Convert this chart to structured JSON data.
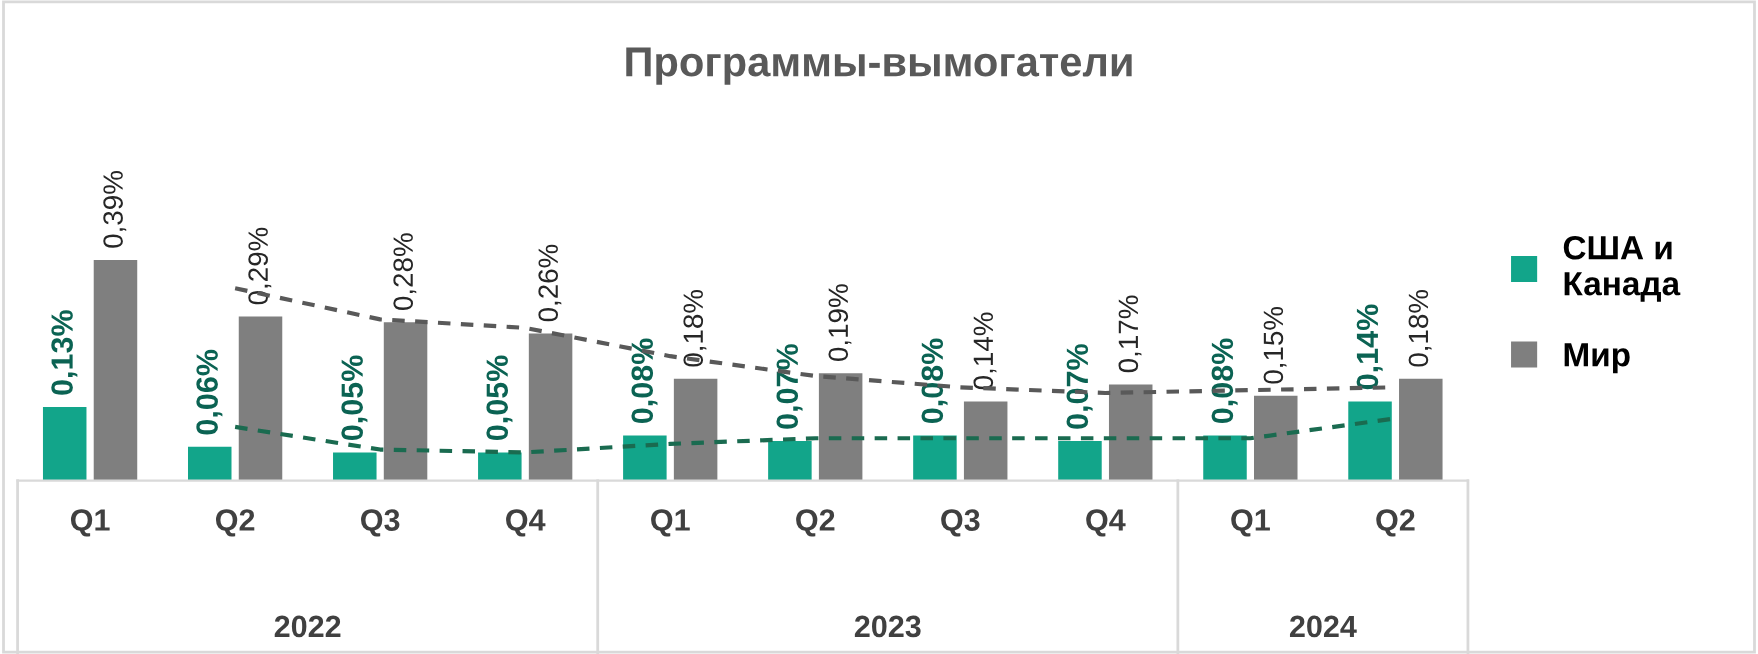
{
  "chart_data": {
    "type": "bar",
    "title": "Программы-вымогатели",
    "categories": [
      "Q1",
      "Q2",
      "Q3",
      "Q4",
      "Q1",
      "Q2",
      "Q3",
      "Q4",
      "Q1",
      "Q2"
    ],
    "series": [
      {
        "name": "США и\nКанада",
        "color": "#12a58a",
        "values": [
          0.13,
          0.06,
          0.05,
          0.05,
          0.08,
          0.07,
          0.08,
          0.07,
          0.08,
          0.14
        ],
        "value_labels": [
          "0,13%",
          "0,06%",
          "0,05%",
          "0,05%",
          "0,08%",
          "0,07%",
          "0,08%",
          "0,07%",
          "0,08%",
          "0,14%"
        ]
      },
      {
        "name": "Мир",
        "color": "#7f7f7f",
        "values": [
          0.39,
          0.29,
          0.28,
          0.26,
          0.18,
          0.19,
          0.14,
          0.17,
          0.15,
          0.18
        ],
        "value_labels": [
          "0,39%",
          "0,29%",
          "0,28%",
          "0,26%",
          "0,18%",
          "0,19%",
          "0,14%",
          "0,17%",
          "0,15%",
          "0,18%"
        ]
      },
      {
        "type": "line",
        "line_style": "dashed",
        "color": "#1a6b50",
        "values": [
          null,
          0.095,
          0.055,
          0.05,
          0.065,
          0.075,
          0.075,
          0.075,
          0.075,
          0.11
        ]
      },
      {
        "type": "line",
        "line_style": "dashed",
        "color": "#595959",
        "values": [
          null,
          0.34,
          0.285,
          0.27,
          0.22,
          0.185,
          0.165,
          0.155,
          0.16,
          0.165
        ]
      }
    ],
    "annotations": [
      "2022",
      "2023",
      "2024"
    ],
    "legend": "right"
  }
}
